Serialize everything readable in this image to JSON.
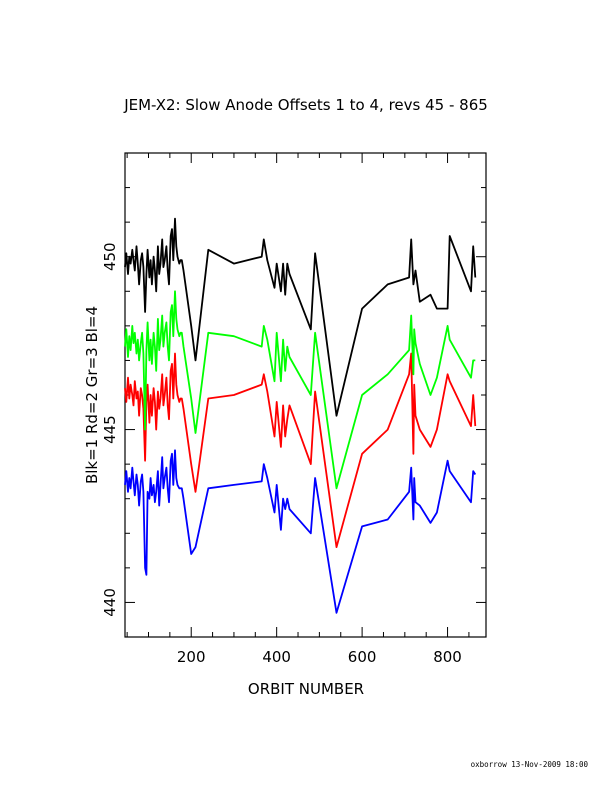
{
  "chart_data": {
    "type": "line",
    "title": "JEM-X2: Slow Anode Offsets 1 to 4, revs 45 - 865",
    "xlabel": "ORBIT NUMBER",
    "ylabel": "Blk=1 Rd=2 Gr=3 Bl=4",
    "xlim": [
      45,
      890
    ],
    "ylim": [
      439,
      453
    ],
    "x_ticks": [
      200,
      400,
      600,
      800
    ],
    "y_ticks": [
      440,
      445,
      450
    ],
    "grid": false,
    "series": [
      {
        "color": "#000000",
        "x": [
          45,
          48,
          52,
          55,
          58,
          62,
          65,
          68,
          72,
          75,
          78,
          82,
          85,
          88,
          92,
          95,
          98,
          102,
          105,
          108,
          112,
          115,
          118,
          122,
          125,
          128,
          132,
          135,
          138,
          142,
          145,
          148,
          152,
          155,
          158,
          162,
          165,
          168,
          172,
          175,
          178,
          182,
          200,
          210,
          240,
          300,
          365,
          370,
          378,
          395,
          400,
          410,
          415,
          420,
          425,
          430,
          480,
          490,
          540,
          600,
          660,
          710,
          715,
          720,
          725,
          735,
          760,
          775,
          800,
          805,
          855,
          860,
          865
        ],
        "y": [
          449.7,
          450.1,
          449.5,
          450.0,
          449.8,
          450.2,
          449.9,
          449.6,
          450.3,
          449.8,
          449.2,
          449.9,
          450.1,
          449.7,
          448.4,
          449.5,
          450.2,
          449.4,
          449.9,
          449.2,
          450.0,
          449.6,
          449.0,
          450.3,
          449.5,
          449.8,
          450.5,
          449.7,
          449.9,
          450.3,
          449.6,
          449.2,
          450.6,
          450.8,
          449.9,
          451.1,
          450.3,
          450.0,
          449.8,
          449.9,
          449.9,
          449.6,
          448.0,
          447.0,
          450.2,
          449.8,
          450.0,
          450.5,
          449.9,
          449.1,
          449.8,
          449.0,
          449.8,
          448.9,
          449.8,
          449.5,
          447.9,
          450.1,
          445.4,
          448.5,
          449.2,
          449.4,
          450.5,
          449.2,
          449.6,
          448.7,
          448.9,
          448.5,
          448.5,
          450.6,
          449.0,
          450.3,
          449.4
        ]
      },
      {
        "color": "#ff0000",
        "x": [
          45,
          48,
          52,
          55,
          58,
          62,
          65,
          68,
          72,
          75,
          78,
          82,
          85,
          88,
          92,
          95,
          98,
          102,
          105,
          108,
          112,
          115,
          118,
          122,
          125,
          128,
          132,
          135,
          138,
          142,
          145,
          148,
          152,
          155,
          158,
          162,
          165,
          168,
          172,
          175,
          178,
          182,
          200,
          210,
          240,
          300,
          365,
          370,
          378,
          395,
          400,
          410,
          415,
          420,
          425,
          430,
          480,
          490,
          540,
          600,
          660,
          710,
          715,
          720,
          722,
          725,
          735,
          760,
          775,
          800,
          805,
          855,
          860,
          865
        ],
        "y": [
          446.2,
          445.8,
          446.5,
          445.9,
          446.3,
          446.0,
          445.7,
          446.4,
          445.9,
          446.1,
          445.4,
          446.2,
          446.0,
          445.6,
          444.1,
          445.8,
          446.3,
          445.2,
          446.0,
          445.4,
          446.2,
          445.8,
          445.0,
          446.1,
          445.6,
          445.9,
          446.6,
          445.7,
          446.0,
          446.5,
          445.7,
          445.3,
          446.7,
          446.9,
          445.9,
          447.2,
          446.3,
          446.0,
          445.8,
          445.9,
          445.9,
          445.6,
          444.0,
          443.2,
          445.9,
          446.0,
          446.3,
          446.6,
          446.1,
          444.8,
          445.8,
          444.5,
          445.7,
          444.8,
          445.3,
          445.7,
          444.0,
          446.1,
          441.6,
          444.3,
          445.0,
          446.6,
          447.2,
          444.3,
          446.3,
          445.4,
          445.0,
          444.5,
          445.0,
          446.6,
          446.4,
          445.1,
          446.0,
          445.1
        ]
      },
      {
        "color": "#00ff00",
        "x": [
          45,
          48,
          52,
          55,
          58,
          62,
          65,
          68,
          72,
          75,
          78,
          82,
          85,
          88,
          92,
          95,
          98,
          102,
          105,
          108,
          112,
          115,
          118,
          122,
          125,
          128,
          132,
          135,
          138,
          142,
          145,
          148,
          152,
          155,
          158,
          162,
          165,
          168,
          172,
          175,
          178,
          182,
          200,
          210,
          240,
          300,
          365,
          370,
          378,
          395,
          400,
          410,
          415,
          420,
          425,
          430,
          480,
          490,
          540,
          600,
          660,
          710,
          715,
          720,
          722,
          725,
          735,
          760,
          775,
          800,
          805,
          855,
          860,
          865
        ],
        "y": [
          447.4,
          447.9,
          447.1,
          447.7,
          447.3,
          448.0,
          447.5,
          447.8,
          447.2,
          447.6,
          447.0,
          447.5,
          447.8,
          447.2,
          445.0,
          447.3,
          448.1,
          447.0,
          447.6,
          446.9,
          447.8,
          447.4,
          446.7,
          448.2,
          447.3,
          447.6,
          448.3,
          447.4,
          447.8,
          448.1,
          447.4,
          447.0,
          448.4,
          448.6,
          447.7,
          449.0,
          448.2,
          447.9,
          447.7,
          447.8,
          447.8,
          447.4,
          445.9,
          444.9,
          447.8,
          447.7,
          447.4,
          448.0,
          447.6,
          446.4,
          447.8,
          446.4,
          447.6,
          446.7,
          447.4,
          447.1,
          446.0,
          447.8,
          443.3,
          446.0,
          446.6,
          447.3,
          448.3,
          446.6,
          447.9,
          447.5,
          446.9,
          446.0,
          446.5,
          448.0,
          447.6,
          446.5,
          447.0,
          447.0
        ]
      },
      {
        "color": "#0000ff",
        "x": [
          45,
          48,
          52,
          55,
          58,
          62,
          65,
          68,
          72,
          75,
          78,
          82,
          85,
          88,
          92,
          95,
          98,
          102,
          105,
          108,
          112,
          115,
          118,
          122,
          125,
          128,
          132,
          135,
          138,
          142,
          145,
          148,
          152,
          155,
          158,
          162,
          165,
          168,
          172,
          175,
          178,
          182,
          200,
          210,
          240,
          300,
          365,
          370,
          378,
          395,
          400,
          410,
          415,
          420,
          425,
          430,
          480,
          490,
          540,
          600,
          660,
          710,
          715,
          720,
          722,
          725,
          735,
          760,
          775,
          800,
          805,
          855,
          860,
          865
        ],
        "y": [
          443.4,
          443.8,
          443.2,
          443.6,
          443.3,
          443.9,
          443.5,
          443.1,
          443.7,
          443.4,
          442.8,
          443.5,
          443.7,
          443.2,
          441.0,
          440.8,
          443.2,
          443.0,
          443.6,
          443.1,
          443.4,
          442.9,
          443.2,
          443.8,
          442.8,
          443.4,
          444.2,
          443.3,
          443.6,
          443.9,
          443.3,
          442.9,
          444.1,
          444.3,
          443.4,
          444.4,
          443.6,
          443.4,
          443.3,
          443.3,
          443.3,
          443.0,
          441.4,
          441.6,
          443.3,
          443.4,
          443.5,
          444.0,
          443.6,
          442.6,
          443.4,
          442.1,
          443.0,
          442.7,
          443.0,
          442.7,
          442.0,
          443.6,
          439.7,
          442.2,
          442.4,
          443.2,
          443.9,
          442.4,
          443.6,
          442.9,
          442.8,
          442.3,
          442.6,
          444.1,
          443.8,
          442.9,
          443.8,
          443.7
        ]
      }
    ]
  },
  "footer": "oxborrow 13-Nov-2009 18:00"
}
